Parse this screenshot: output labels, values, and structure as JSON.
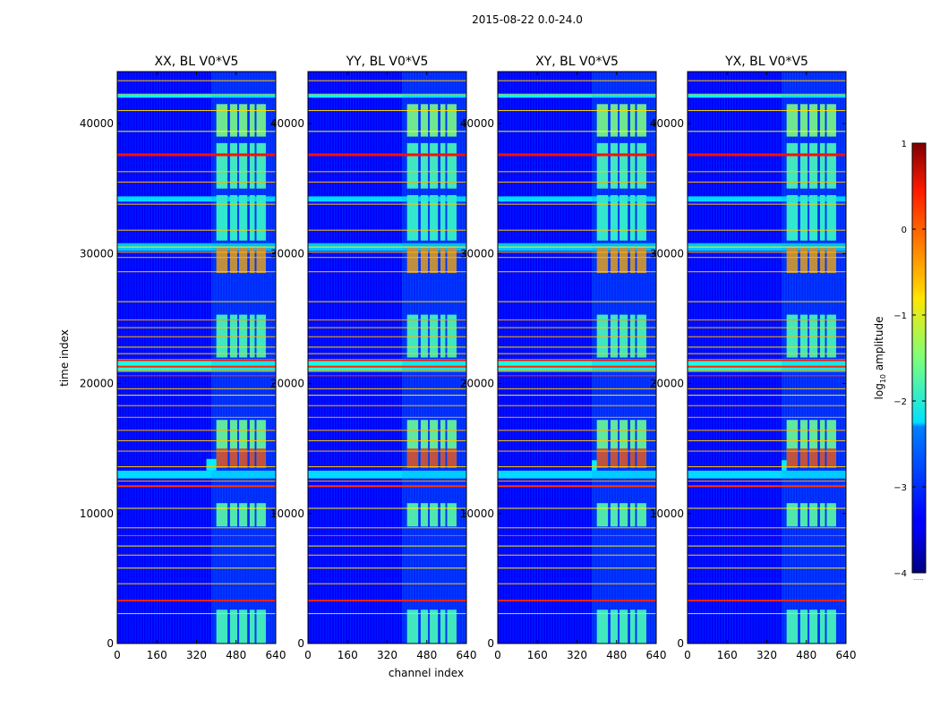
{
  "chart_data": {
    "type": "heatmap",
    "suptitle": "2015-08-22 0.0-24.0",
    "xlabel": "channel index",
    "ylabel": "time index",
    "xlim": [
      0,
      640
    ],
    "ylim": [
      0,
      44000
    ],
    "xticks": [
      "0",
      "160",
      "320",
      "480",
      "640"
    ],
    "yticks": [
      "0",
      "10000",
      "20000",
      "30000",
      "40000"
    ],
    "panels": [
      {
        "title": "XX, BL V0*V5",
        "rfi_bump": [
          360,
          13300,
          14200
        ]
      },
      {
        "title": "YY, BL V0*V5",
        "rfi_bump": null
      },
      {
        "title": "XY, BL V0*V5",
        "rfi_bump": [
          380,
          13300,
          14100
        ]
      },
      {
        "title": "YX, BL V0*V5",
        "rfi_bump": [
          380,
          13300,
          14100
        ]
      }
    ],
    "colorbar": {
      "label": "log10 amplitude",
      "label_base": "log",
      "label_sub": "10",
      "label_rest": " amplitude",
      "range": [
        -4,
        1
      ],
      "ticks": [
        "1",
        "0",
        "−1",
        "−2",
        "−3",
        "−4"
      ],
      "colormap": "jet",
      "footnote": "......"
    },
    "features": {
      "background_level": -3.4,
      "bright_channel_bands": [
        [
          400,
          445
        ],
        [
          455,
          485
        ],
        [
          492,
          525
        ],
        [
          535,
          555
        ],
        [
          562,
          600
        ]
      ],
      "bright_time_blocks": [
        {
          "t": [
            0,
            2600
          ],
          "level": -1.7
        },
        {
          "t": [
            9000,
            10800
          ],
          "level": -1.6
        },
        {
          "t": [
            13500,
            17200
          ],
          "level": -1.5
        },
        {
          "t": [
            22000,
            25300
          ],
          "level": -1.7
        },
        {
          "t": [
            28500,
            30500
          ],
          "level": -0.3
        },
        {
          "t": [
            31000,
            34500
          ],
          "level": -1.8
        },
        {
          "t": [
            35000,
            38500
          ],
          "level": -1.7
        },
        {
          "t": [
            39000,
            41500
          ],
          "level": -1.4
        }
      ],
      "hot_block": {
        "t": [
          13500,
          15000
        ],
        "level": 0.1
      },
      "rfi_rows": [
        {
          "t": 2300,
          "level": -1.5,
          "thick": 1
        },
        {
          "t": 3300,
          "level": 0.2,
          "thick": 2
        },
        {
          "t": 4600,
          "level": -0.6,
          "thick": 1
        },
        {
          "t": 5800,
          "level": -0.8,
          "thick": 1
        },
        {
          "t": 6800,
          "level": -0.6,
          "thick": 1
        },
        {
          "t": 7500,
          "level": -0.8,
          "thick": 1
        },
        {
          "t": 8300,
          "level": 0.0,
          "thick": 1
        },
        {
          "t": 8900,
          "level": -0.6,
          "thick": 1
        },
        {
          "t": 10400,
          "level": -0.8,
          "thick": 1
        },
        {
          "t": 12100,
          "level": 0.1,
          "thick": 2
        },
        {
          "t": 12500,
          "level": -0.4,
          "thick": 1
        },
        {
          "t": 13600,
          "level": -0.6,
          "thick": 1
        },
        {
          "t": 14800,
          "level": -0.5,
          "thick": 1
        },
        {
          "t": 15600,
          "level": -0.6,
          "thick": 1
        },
        {
          "t": 16400,
          "level": -0.5,
          "thick": 1
        },
        {
          "t": 17400,
          "level": -0.4,
          "thick": 1
        },
        {
          "t": 18300,
          "level": -0.5,
          "thick": 1
        },
        {
          "t": 19100,
          "level": -0.8,
          "thick": 1
        },
        {
          "t": 19600,
          "level": -0.6,
          "thick": 1
        },
        {
          "t": 20600,
          "level": 0.1,
          "thick": 1
        },
        {
          "t": 21000,
          "level": -0.3,
          "thick": 1
        },
        {
          "t": 21300,
          "level": 0.2,
          "thick": 2
        },
        {
          "t": 21800,
          "level": 0.3,
          "thick": 2
        },
        {
          "t": 22300,
          "level": -0.6,
          "thick": 1
        },
        {
          "t": 22800,
          "level": -0.7,
          "thick": 1
        },
        {
          "t": 23600,
          "level": -0.5,
          "thick": 1
        },
        {
          "t": 24300,
          "level": -0.6,
          "thick": 1
        },
        {
          "t": 24900,
          "level": -0.4,
          "thick": 1
        },
        {
          "t": 26300,
          "level": -0.7,
          "thick": 1
        },
        {
          "t": 28600,
          "level": -0.6,
          "thick": 1
        },
        {
          "t": 29700,
          "level": -0.5,
          "thick": 1
        },
        {
          "t": 30100,
          "level": -0.5,
          "thick": 1
        },
        {
          "t": 30500,
          "level": -0.8,
          "thick": 1
        },
        {
          "t": 31800,
          "level": -0.6,
          "thick": 1
        },
        {
          "t": 33800,
          "level": -0.6,
          "thick": 1
        },
        {
          "t": 35500,
          "level": -0.5,
          "thick": 1
        },
        {
          "t": 36300,
          "level": -0.6,
          "thick": 1
        },
        {
          "t": 37600,
          "level": 0.3,
          "thick": 3
        },
        {
          "t": 39400,
          "level": -0.9,
          "thick": 1
        },
        {
          "t": 41000,
          "level": -0.7,
          "thick": 1
        },
        {
          "t": 42200,
          "level": -0.5,
          "thick": 1
        },
        {
          "t": 43300,
          "level": -0.6,
          "thick": 1
        }
      ],
      "cyan_row_bands": [
        {
          "t": [
            12700,
            13300
          ],
          "level": -2.3
        },
        {
          "t": [
            20900,
            21900
          ],
          "level": -2.0
        },
        {
          "t": [
            30200,
            30800
          ],
          "level": -2.4
        },
        {
          "t": [
            34000,
            34400
          ],
          "level": -2.3
        },
        {
          "t": [
            42000,
            42300
          ],
          "level": -2.2
        }
      ]
    }
  }
}
